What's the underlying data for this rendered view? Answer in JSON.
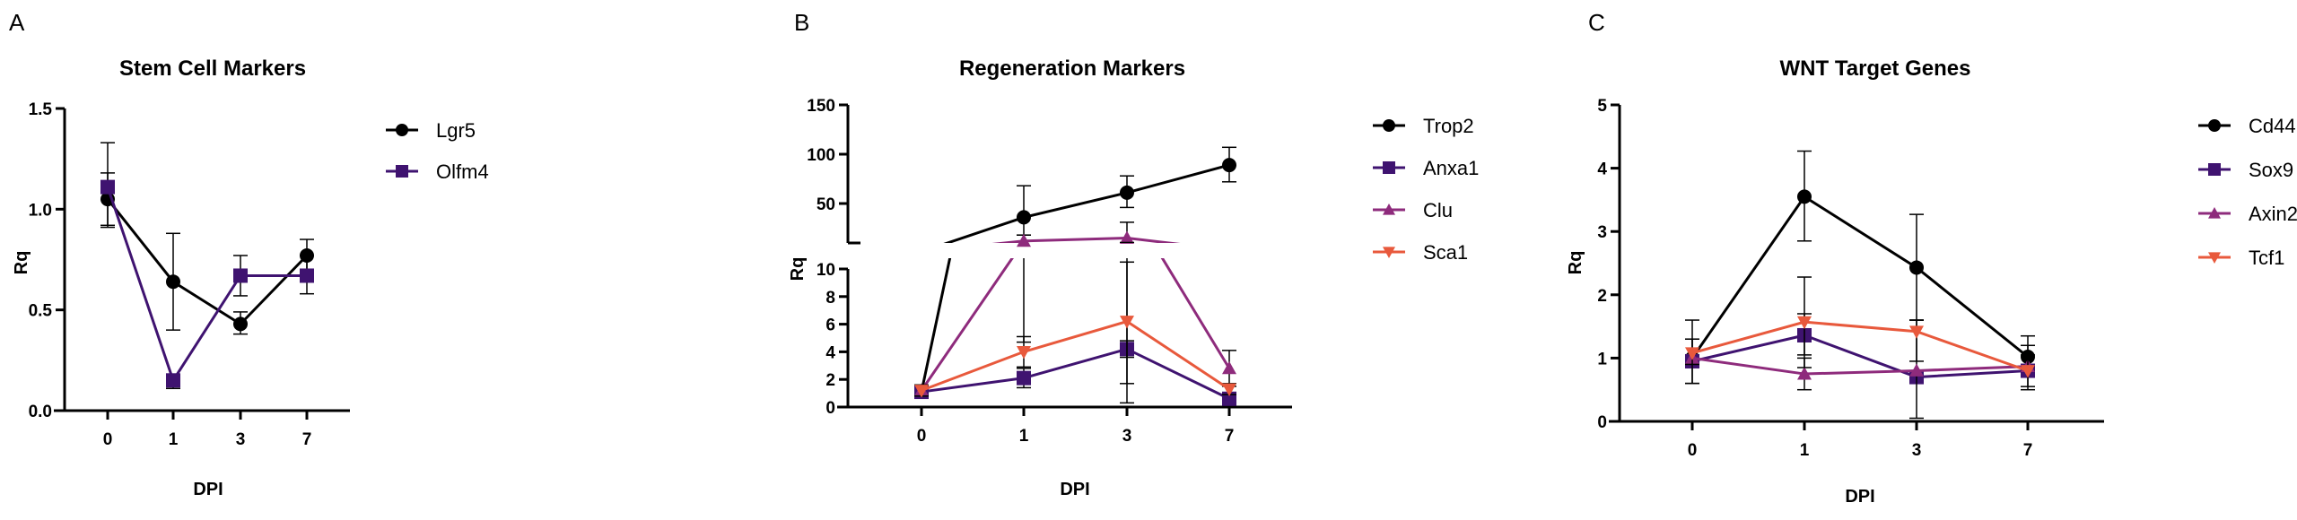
{
  "colors": {
    "black": "#000000",
    "purple": "#3f1370",
    "magenta": "#8e2b7c",
    "orange": "#e8593c"
  },
  "chart_data": [
    {
      "panel_label": "A",
      "type": "line",
      "title": "Stem Cell Markers",
      "xlabel": "DPI",
      "ylabel": "Rq",
      "categories": [
        "0",
        "1",
        "3",
        "7"
      ],
      "ylim": [
        0,
        1.5
      ],
      "yticks": [
        "0.0",
        "0.5",
        "1.0",
        "1.5"
      ],
      "error_bars": true,
      "legend_placement": "right",
      "series": [
        {
          "name": "Lgr5",
          "color": "#000000",
          "marker": "circle",
          "values": [
            1.05,
            0.64,
            0.43,
            0.77
          ],
          "err_low": [
            0.92,
            0.4,
            0.38,
            0.7
          ],
          "err_high": [
            1.18,
            0.88,
            0.49,
            0.85
          ]
        },
        {
          "name": "Olfm4",
          "color": "#3f1370",
          "marker": "square",
          "values": [
            1.11,
            0.15,
            0.67,
            0.67
          ],
          "err_low": [
            0.91,
            0.11,
            0.57,
            0.58
          ],
          "err_high": [
            1.33,
            0.17,
            0.77,
            0.77
          ]
        }
      ]
    },
    {
      "panel_label": "B",
      "type": "line",
      "title": "Regeneration Markers",
      "xlabel": "DPI",
      "ylabel": "Rq",
      "categories": [
        "0",
        "1",
        "3",
        "7"
      ],
      "y_axis_break": true,
      "ylim_lower": [
        0,
        10
      ],
      "ylim_upper": [
        10,
        150
      ],
      "yticks_lower": [
        "0",
        "2",
        "4",
        "6",
        "8",
        "10"
      ],
      "yticks_upper": [
        "50",
        "100",
        "150"
      ],
      "error_bars": true,
      "legend_placement": "right",
      "series": [
        {
          "name": "Trop2",
          "color": "#000000",
          "marker": "circle",
          "values": [
            1.1,
            36,
            61,
            89
          ],
          "err_low": [
            0.8,
            18,
            46,
            72
          ],
          "err_high": [
            1.4,
            68,
            78,
            107
          ]
        },
        {
          "name": "Anxa1",
          "color": "#3f1370",
          "marker": "square",
          "values": [
            1.1,
            2.1,
            4.2,
            0.6
          ],
          "err_low": [
            0.7,
            1.4,
            3.6,
            0.4
          ],
          "err_high": [
            1.5,
            2.8,
            4.8,
            0.8
          ]
        },
        {
          "name": "Clu",
          "color": "#8e2b7c",
          "marker": "triangle-up",
          "values": [
            1.2,
            12,
            15,
            2.8
          ],
          "err_low": [
            0.8,
            4.7,
            0.3,
            1.5
          ],
          "err_high": [
            1.6,
            18,
            31,
            4.1
          ]
        },
        {
          "name": "Sca1",
          "color": "#e8593c",
          "marker": "triangle-down",
          "values": [
            1.2,
            4.0,
            6.2,
            1.3
          ],
          "err_low": [
            0.8,
            2.9,
            1.7,
            0.9
          ],
          "err_high": [
            1.6,
            5.1,
            10.5,
            1.7
          ]
        }
      ]
    },
    {
      "panel_label": "C",
      "type": "line",
      "title": "WNT Target Genes",
      "xlabel": "DPI",
      "ylabel": "Rq",
      "categories": [
        "0",
        "1",
        "3",
        "7"
      ],
      "ylim": [
        0,
        5
      ],
      "yticks": [
        "0",
        "1",
        "2",
        "3",
        "4",
        "5"
      ],
      "error_bars": true,
      "legend_placement": "right",
      "series": [
        {
          "name": "Cd44",
          "color": "#000000",
          "marker": "circle",
          "values": [
            1.0,
            3.55,
            2.43,
            1.02
          ],
          "err_low": [
            0.6,
            2.85,
            1.6,
            0.7
          ],
          "err_high": [
            1.6,
            4.27,
            3.27,
            1.35
          ]
        },
        {
          "name": "Sox9",
          "color": "#3f1370",
          "marker": "square",
          "values": [
            0.95,
            1.36,
            0.7,
            0.8
          ],
          "err_low": [
            0.85,
            1.05,
            0.6,
            0.7
          ],
          "err_high": [
            1.05,
            1.7,
            0.8,
            0.9
          ]
        },
        {
          "name": "Axin2",
          "color": "#8e2b7c",
          "marker": "triangle-up",
          "values": [
            1.0,
            0.75,
            0.8,
            0.87
          ],
          "err_low": [
            0.6,
            0.5,
            0.05,
            0.5
          ],
          "err_high": [
            1.3,
            1.0,
            1.6,
            1.2
          ]
        },
        {
          "name": "Tcf1",
          "color": "#e8593c",
          "marker": "triangle-down",
          "values": [
            1.08,
            1.57,
            1.42,
            0.8
          ],
          "err_low": [
            0.9,
            0.85,
            0.95,
            0.55
          ],
          "err_high": [
            1.3,
            2.28,
            1.6,
            1.05
          ]
        }
      ]
    }
  ]
}
